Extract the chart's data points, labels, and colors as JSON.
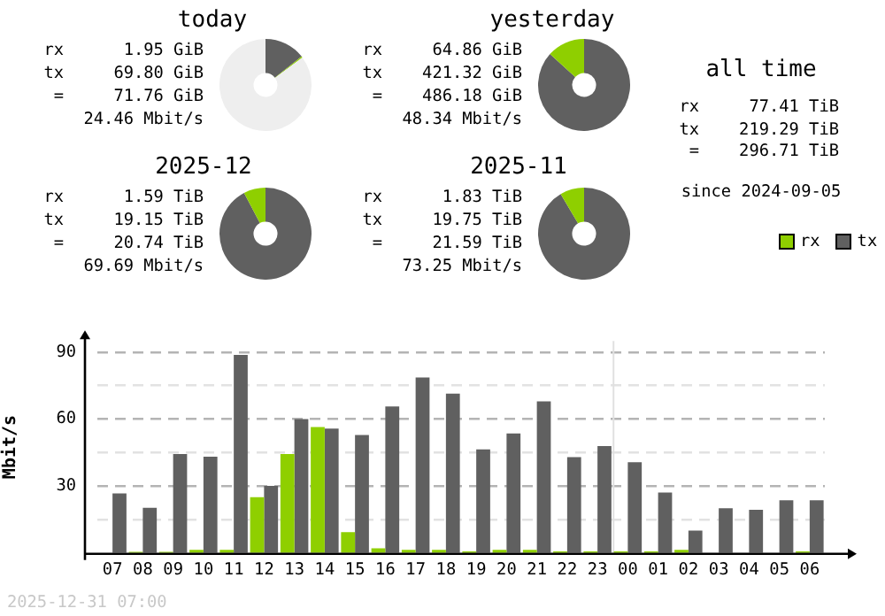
{
  "chart_data": [
    {
      "type": "donut",
      "title": "today",
      "categories": [
        null,
        null,
        null
      ],
      "values": [
        14.4,
        0.4,
        85.2
      ],
      "colors": [
        "#606060",
        "#8fcf00",
        "#eeeeee"
      ],
      "annotations": [
        "rx      1.95 GiB",
        "tx     69.80 GiB",
        "=     71.76 GiB",
        "24.46 Mbit/s"
      ]
    },
    {
      "type": "donut",
      "title": "yesterday",
      "categories": [
        null,
        null
      ],
      "values": [
        86.7,
        13.3
      ],
      "colors": [
        "#606060",
        "#8fcf00"
      ],
      "annotations": [
        "rx     64.86 GiB",
        "tx    421.32 GiB",
        "=    486.18 GiB",
        "48.34 Mbit/s"
      ]
    },
    {
      "type": "other",
      "title": "all time",
      "annotations": [
        "rx     77.41 TiB",
        "tx    219.29 TiB",
        "=    296.71 TiB",
        "since 2024-09-05"
      ]
    },
    {
      "type": "donut",
      "title": "2025-12",
      "categories": [
        null,
        null
      ],
      "values": [
        92.3,
        7.7
      ],
      "colors": [
        "#606060",
        "#8fcf00"
      ],
      "annotations": [
        "rx      1.59 TiB",
        "tx     19.15 TiB",
        "=     20.74 TiB",
        "69.69 Mbit/s"
      ]
    },
    {
      "type": "donut",
      "title": "2025-11",
      "categories": [
        null,
        null
      ],
      "values": [
        91.5,
        8.5
      ],
      "colors": [
        "#606060",
        "#8fcf00"
      ],
      "annotations": [
        "rx      1.83 TiB",
        "tx     19.75 TiB",
        "=     21.59 TiB",
        "73.25 Mbit/s"
      ]
    },
    {
      "type": "bar",
      "ylabel": "Mbit/s",
      "categories": [
        "07",
        "08",
        "09",
        "10",
        "11",
        "12",
        "13",
        "14",
        "15",
        "16",
        "17",
        "18",
        "19",
        "20",
        "21",
        "22",
        "23",
        "00",
        "01",
        "02",
        "03",
        "04",
        "05",
        "06"
      ],
      "series": [
        {
          "name": "rx",
          "color": "#8fcf00",
          "values": [
            0,
            0.5,
            0.5,
            1.4,
            1.4,
            25,
            44.3,
            56.4,
            9.3,
            2.1,
            1.4,
            1.4,
            0.7,
            1.4,
            1.4,
            0.7,
            0.7,
            0.7,
            0.7,
            1.4,
            0,
            0,
            0,
            0.7
          ]
        },
        {
          "name": "tx",
          "color": "#606060",
          "values": [
            26.7,
            20.2,
            44.3,
            43.1,
            88.8,
            30,
            60,
            55.7,
            52.9,
            65.7,
            78.6,
            71.4,
            46.4,
            53.6,
            67.9,
            42.9,
            47.9,
            40.7,
            27.1,
            10,
            20,
            19.3,
            23.6,
            23.6
          ]
        }
      ],
      "ylim": [
        0,
        95
      ],
      "yticks": [
        {
          "value": 15,
          "label": null
        },
        30,
        {
          "value": 45,
          "label": null
        },
        60,
        {
          "value": 75,
          "label": null
        },
        90
      ],
      "grid": "y",
      "legend": "top right",
      "ref_lines": [
        {
          "axis": "x",
          "value": "00",
          "color": "#e0e0e0"
        }
      ],
      "annotations": [
        "2025-12-31 07:00"
      ]
    }
  ]
}
